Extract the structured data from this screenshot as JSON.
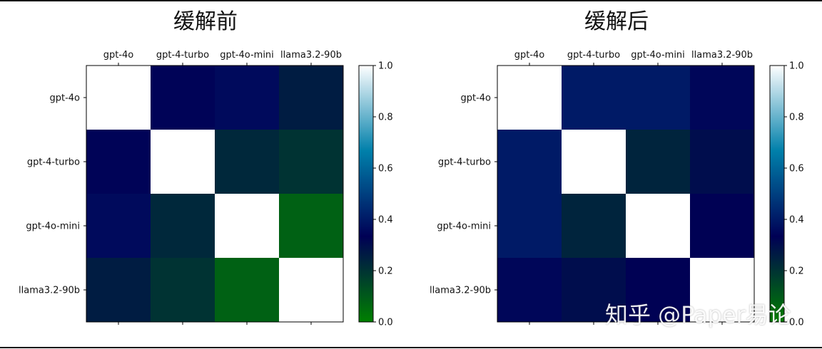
{
  "chart_data": [
    {
      "type": "heatmap",
      "title": "缓解前",
      "x_labels": [
        "gpt-4o",
        "gpt-4-turbo",
        "gpt-4o-mini",
        "llama3.2-90b"
      ],
      "y_labels": [
        "gpt-4o",
        "gpt-4-turbo",
        "gpt-4o-mini",
        "llama3.2-90b"
      ],
      "matrix": [
        [
          1.0,
          0.34,
          0.36,
          0.26
        ],
        [
          0.34,
          1.0,
          0.23,
          0.2
        ],
        [
          0.36,
          0.23,
          1.0,
          0.08
        ],
        [
          0.26,
          0.2,
          0.08,
          1.0
        ]
      ],
      "vmin": 0.0,
      "vmax": 1.0,
      "colorbar_ticks": [
        "0.0",
        "0.2",
        "0.4",
        "0.6",
        "0.8",
        "1.0"
      ],
      "colormap": "ocean"
    },
    {
      "type": "heatmap",
      "title": "缓解后",
      "x_labels": [
        "gpt-4o",
        "gpt-4-turbo",
        "gpt-4o-mini",
        "llama3.2-90b"
      ],
      "y_labels": [
        "gpt-4o",
        "gpt-4-turbo",
        "gpt-4o-mini",
        "llama3.2-90b"
      ],
      "matrix": [
        [
          1.0,
          0.4,
          0.4,
          0.35
        ],
        [
          0.4,
          1.0,
          0.24,
          0.3
        ],
        [
          0.4,
          0.24,
          1.0,
          0.33
        ],
        [
          0.35,
          0.3,
          0.33,
          1.0
        ]
      ],
      "vmin": 0.0,
      "vmax": 1.0,
      "colorbar_ticks": [
        "0.0",
        "0.2",
        "0.4",
        "0.6",
        "0.8",
        "1.0"
      ],
      "colormap": "ocean"
    }
  ],
  "watermark": "知乎 @Paper易论"
}
